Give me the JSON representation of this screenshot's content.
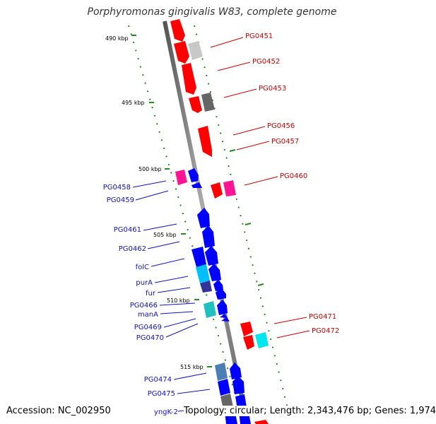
{
  "title": "Porphyromonas gingivalis W83, complete genome",
  "accession": "Accession: NC_002950",
  "summary": "Topology: circular; Length: 2,343,476 bp; Genes: 1,974",
  "scale_ticks": [
    "490 kbp",
    "495 kbp",
    "500 kbp",
    "505 kbp",
    "510 kbp",
    "515 kbp"
  ],
  "forward_labels": [
    "PG0451",
    "PG0452",
    "PG0453",
    "PG0456",
    "PG0457",
    "PG0460",
    "PG0471",
    "PG0472"
  ],
  "reverse_labels": [
    "PG0458",
    "PG0459",
    "PG0461",
    "PG0462",
    "folC",
    "purA",
    "fur",
    "PG0466",
    "manA",
    "PG0469",
    "PG0470",
    "PG0474",
    "PG0475",
    "yngK-2"
  ],
  "colors": {
    "forward_strand": "#ff0000",
    "reverse_strand": "#0000ff",
    "backbone": "#888888",
    "tick_marks": "#228b22",
    "magenta_genes": "#ff1493",
    "cyan_genes": "#00e5ee"
  }
}
